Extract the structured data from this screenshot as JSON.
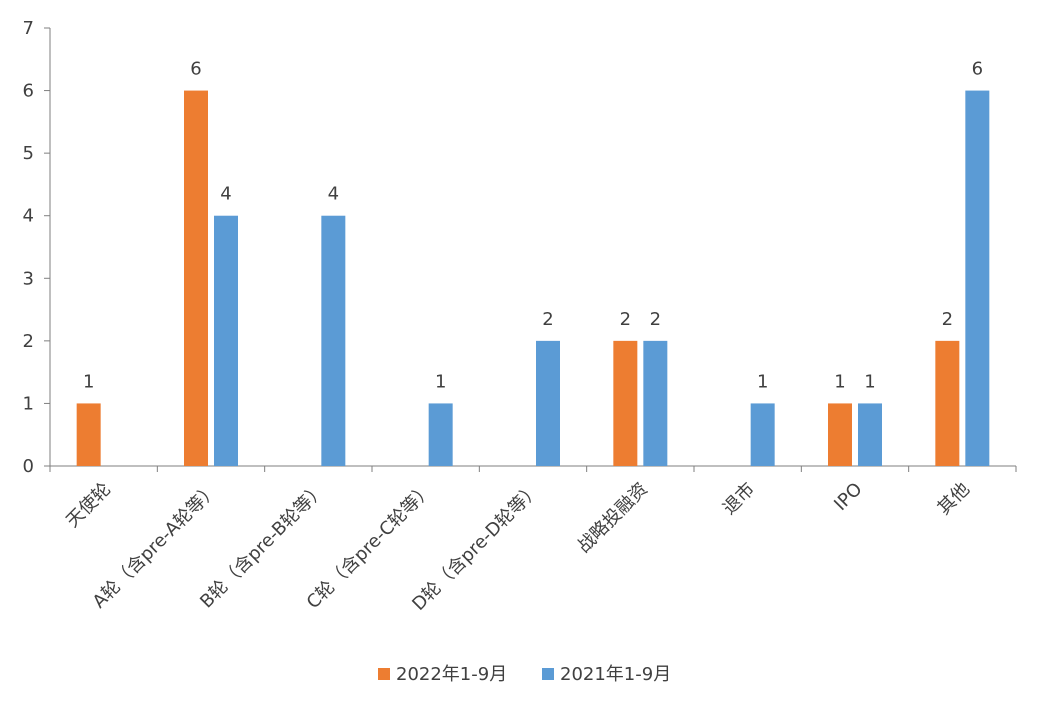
{
  "chart_data": {
    "type": "bar",
    "title": "",
    "xlabel": "",
    "ylabel": "",
    "categories": [
      "天使轮",
      "A轮（含pre-A轮等）",
      "B轮（含pre-B轮等）",
      "C轮（含pre-C轮等）",
      "D轮（含pre-D轮等）",
      "战略投融资",
      "退市",
      "IPO",
      "其他"
    ],
    "series": [
      {
        "name": "2022年1-9月",
        "color": "#ED7D31",
        "values": [
          1,
          6,
          null,
          null,
          null,
          2,
          null,
          1,
          2
        ]
      },
      {
        "name": "2021年1-9月",
        "color": "#5B9BD5",
        "values": [
          null,
          4,
          4,
          1,
          2,
          2,
          1,
          1,
          6
        ]
      }
    ],
    "ylim": [
      0,
      7
    ],
    "yticks": [
      0,
      1,
      2,
      3,
      4,
      5,
      6,
      7
    ],
    "grid": false,
    "legend_position": "bottom"
  }
}
